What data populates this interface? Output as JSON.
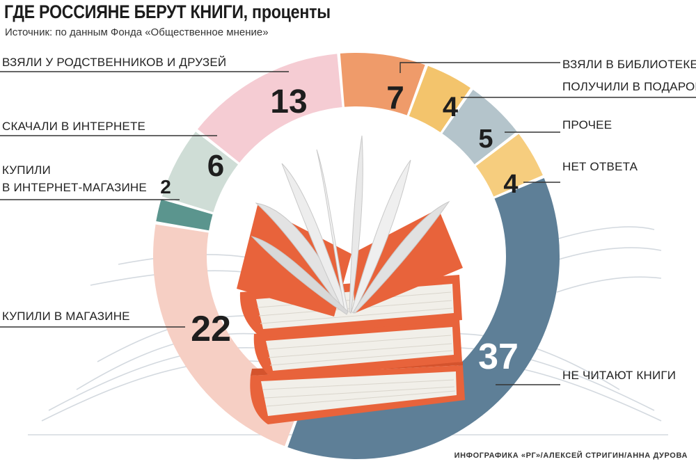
{
  "header": {
    "title": "ГДЕ РОССИЯНЕ БЕРУТ КНИГИ, проценты",
    "source": "Источник: по данным Фонда «Общественное мнение»"
  },
  "footer": {
    "credit": "ИНФОГРАФИКА «РГ»/АЛЕКСЕЙ СТРИГИН/АННА ДУРОВА"
  },
  "chart_data": {
    "type": "pie",
    "variant": "donut",
    "title": "ГДЕ РОССИЯНЕ БЕРУТ КНИГИ, проценты",
    "unit": "проценты",
    "slices": [
      {
        "label": "ВЗЯЛИ В БИБЛИОТЕКЕ",
        "value": 7,
        "color": "#ef9b6a"
      },
      {
        "label": "ПОЛУЧИЛИ В ПОДАРОК",
        "value": 4,
        "color": "#f3c46c"
      },
      {
        "label": "ПРОЧЕЕ",
        "value": 5,
        "color": "#b4c4cb"
      },
      {
        "label": "НЕТ ОТВЕТА",
        "value": 4,
        "color": "#f6cd7e"
      },
      {
        "label": "НЕ ЧИТАЮТ КНИГИ",
        "value": 37,
        "color": "#5e7f97"
      },
      {
        "label": "КУПИЛИ В МАГАЗИНЕ",
        "value": 22,
        "color": "#f6cfc4"
      },
      {
        "label": "КУПИЛИ В ИНТЕРНЕТ-МАГАЗИНЕ",
        "value": 2,
        "color": "#5b958e"
      },
      {
        "label": "СКАЧАЛИ В ИНТЕРНЕТЕ",
        "value": 6,
        "color": "#cfddd6"
      },
      {
        "label": "ВЗЯЛИ У РОДСТВЕННИКОВ И ДРУЗЕЙ",
        "value": 13,
        "color": "#f5ccd3"
      }
    ],
    "legend": "callout labels"
  }
}
